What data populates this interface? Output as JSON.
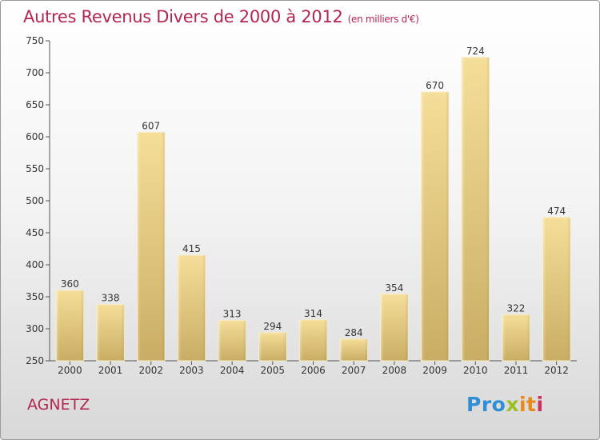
{
  "title": "Autres Revenus Divers de 2000 à 2012",
  "unit_note": "(en milliers d'€)",
  "location": "AGNETZ",
  "logo": {
    "text": "Proxiti",
    "parts": [
      "Pro",
      "x",
      "it",
      "i"
    ]
  },
  "colors": {
    "title": "#b3264f",
    "bar_top": "#f5de99",
    "bar_bottom": "#c9ad64",
    "axis": "#555555"
  },
  "chart_data": {
    "type": "bar",
    "categories": [
      "2000",
      "2001",
      "2002",
      "2003",
      "2004",
      "2005",
      "2006",
      "2007",
      "2008",
      "2009",
      "2010",
      "2011",
      "2012"
    ],
    "values": [
      360,
      338,
      607,
      415,
      313,
      294,
      314,
      284,
      354,
      670,
      724,
      322,
      474
    ],
    "ylim": [
      250,
      750
    ],
    "yticks": [
      250,
      300,
      350,
      400,
      450,
      500,
      550,
      600,
      650,
      700,
      750
    ],
    "grid": false,
    "xlabel": "",
    "ylabel": ""
  }
}
